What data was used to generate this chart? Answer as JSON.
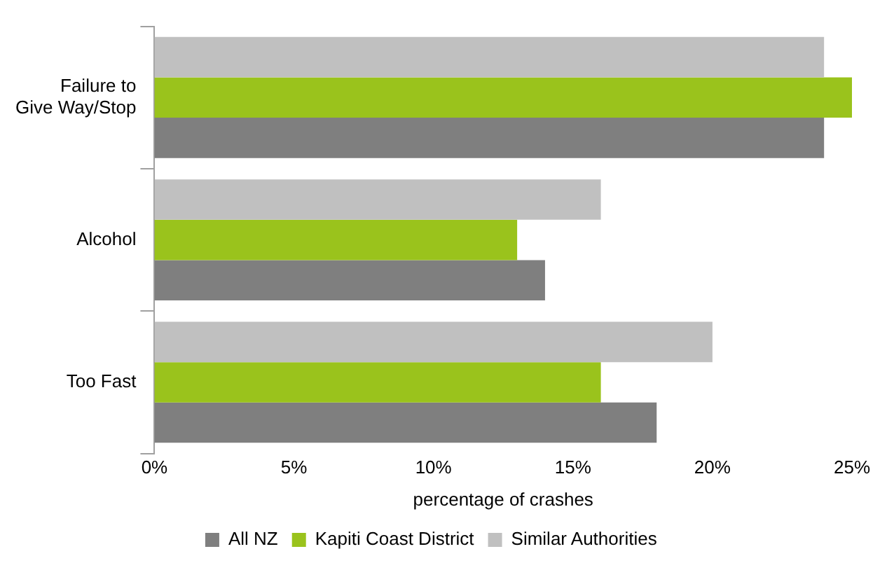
{
  "chart_data": {
    "type": "bar",
    "orientation": "horizontal",
    "xlabel": "percentage of crashes",
    "categories": [
      "Failure to Give Way/Stop",
      "Alcohol",
      "Too Fast"
    ],
    "series": [
      {
        "name": "All NZ",
        "color": "#7f7f7f",
        "values": [
          24,
          14,
          18
        ]
      },
      {
        "name": "Kapiti Coast District",
        "color": "#9ac31c",
        "values": [
          25,
          13,
          16
        ]
      },
      {
        "name": "Similar Authorities",
        "color": "#c0c0c0",
        "values": [
          24,
          16,
          20
        ]
      }
    ],
    "xlim": [
      0,
      25
    ],
    "xticks": [
      {
        "value": 0,
        "label": "0%"
      },
      {
        "value": 5,
        "label": "5%"
      },
      {
        "value": 10,
        "label": "10%"
      },
      {
        "value": 15,
        "label": "15%"
      },
      {
        "value": 20,
        "label": "20%"
      },
      {
        "value": 25,
        "label": "25%"
      }
    ],
    "grid": false,
    "legend": "bottom"
  }
}
